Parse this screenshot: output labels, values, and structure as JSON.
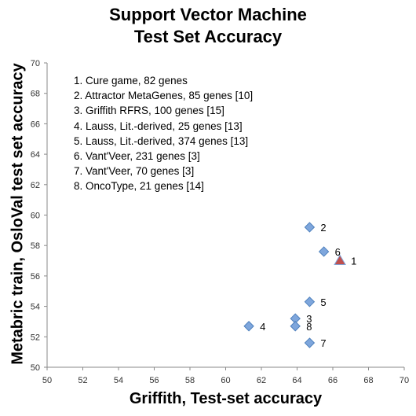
{
  "chart_data": {
    "type": "scatter",
    "title_line1": "Support Vector Machine",
    "title_line2": "Test Set Accuracy",
    "xlabel": "Griffith, Test-set accuracy",
    "ylabel": "Metabric train, OsloVal test set accuracy",
    "xlim": [
      50,
      70
    ],
    "ylim": [
      50,
      70
    ],
    "xticks": [
      "50",
      "52",
      "54",
      "56",
      "58",
      "60",
      "62",
      "64",
      "66",
      "68",
      "70"
    ],
    "yticks": [
      "50",
      "52",
      "54",
      "56",
      "58",
      "60",
      "62",
      "64",
      "66",
      "68",
      "70"
    ],
    "grid": false,
    "points": [
      {
        "label": "1",
        "x": 66.4,
        "y": 57.0,
        "marker": "triangle",
        "color": "#c0504d"
      },
      {
        "label": "2",
        "x": 64.7,
        "y": 59.2,
        "marker": "diamond",
        "color": "#7ea6dc"
      },
      {
        "label": "3",
        "x": 63.9,
        "y": 53.2,
        "marker": "diamond",
        "color": "#7ea6dc"
      },
      {
        "label": "4",
        "x": 61.3,
        "y": 52.7,
        "marker": "diamond",
        "color": "#7ea6dc"
      },
      {
        "label": "5",
        "x": 64.7,
        "y": 54.3,
        "marker": "diamond",
        "color": "#7ea6dc"
      },
      {
        "label": "6",
        "x": 65.5,
        "y": 57.6,
        "marker": "diamond",
        "color": "#7ea6dc"
      },
      {
        "label": "7",
        "x": 64.7,
        "y": 51.6,
        "marker": "diamond",
        "color": "#7ea6dc"
      },
      {
        "label": "8",
        "x": 63.9,
        "y": 52.7,
        "marker": "diamond",
        "color": "#7ea6dc"
      }
    ],
    "legend": [
      "1. Cure game, 82 genes",
      "2. Attractor MetaGenes, 85 genes [10]",
      "3. Griffith RFRS, 100 genes [15]",
      "4. Lauss, Lit.-derived, 25 genes [13]",
      "5. Lauss, Lit.-derived, 374 genes [13]",
      "6. Vant'Veer, 231 genes [3]",
      "7. Vant'Veer, 70 genes [3]",
      "8. OncoType, 21 genes [14]"
    ],
    "legend_position": "top-left"
  }
}
